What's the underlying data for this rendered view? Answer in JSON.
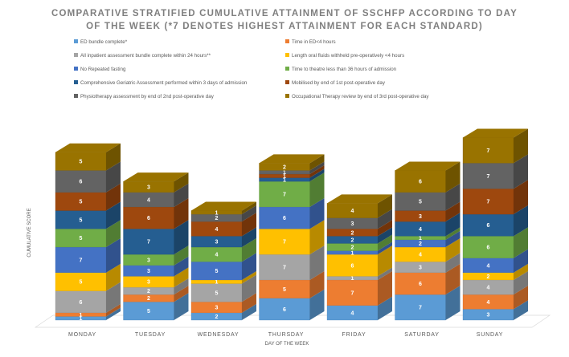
{
  "chart_data": {
    "type": "bar",
    "stacked": true,
    "title_lines": [
      "COMPARATIVE STRATIFIED CUMULATIVE ATTAINMENT OF SSCHFP ACCORDING TO DAY",
      "OF THE WEEK (*7 DENOTES HIGHEST ATTAINMENT FOR EACH STANDARD)"
    ],
    "xlabel": "DAY OF THE WEEK",
    "ylabel": "CUMULATIVE SCORE",
    "legend_position": "top",
    "categories": [
      "MONDAY",
      "TUESDAY",
      "WEDNESDAY",
      "THURSDAY",
      "FRIDAY",
      "SATURDAY",
      "SUNDAY"
    ],
    "series": [
      {
        "name": "ED bundle complete*",
        "color": "#5b9bd5",
        "values": [
          1,
          5,
          2,
          6,
          4,
          7,
          3
        ]
      },
      {
        "name": "Time in ED<4 hours",
        "color": "#ed7d31",
        "values": [
          1,
          2,
          3,
          5,
          7,
          6,
          4
        ]
      },
      {
        "name": "All inpatient assessment bundle complete within 24 hours**",
        "color": "#a5a5a5",
        "values": [
          6,
          2,
          5,
          7,
          1,
          3,
          4
        ]
      },
      {
        "name": "Length oral fluids withheld pre-operatively <4 hours",
        "color": "#ffc000",
        "values": [
          5,
          3,
          1,
          7,
          6,
          4,
          2
        ]
      },
      {
        "name": "No Repeated fasting",
        "color": "#4472c4",
        "values": [
          7,
          3,
          5,
          6,
          1,
          2,
          4
        ]
      },
      {
        "name": "Time to theatre less than 36 hours of admission",
        "color": "#70ad47",
        "values": [
          5,
          3,
          4,
          7,
          2,
          1,
          6
        ]
      },
      {
        "name": "Comprehensive Geriatric Assessment performed within 3 days of admission",
        "color": "#255e91",
        "values": [
          5,
          7,
          3,
          1,
          2,
          4,
          6
        ]
      },
      {
        "name": "Mobilised by end of 1st post-operative day",
        "color": "#9e480e",
        "values": [
          5,
          6,
          4,
          1,
          2,
          3,
          7
        ]
      },
      {
        "name": "Physiotherapy assessment by end of 2nd post-operative day",
        "color": "#636363",
        "values": [
          6,
          4,
          2,
          1,
          3,
          5,
          7
        ]
      },
      {
        "name": "Occupational Therapy review by end of 3rd post-operative day",
        "color": "#997300",
        "values": [
          5,
          3,
          1,
          2,
          4,
          6,
          7
        ]
      }
    ]
  }
}
